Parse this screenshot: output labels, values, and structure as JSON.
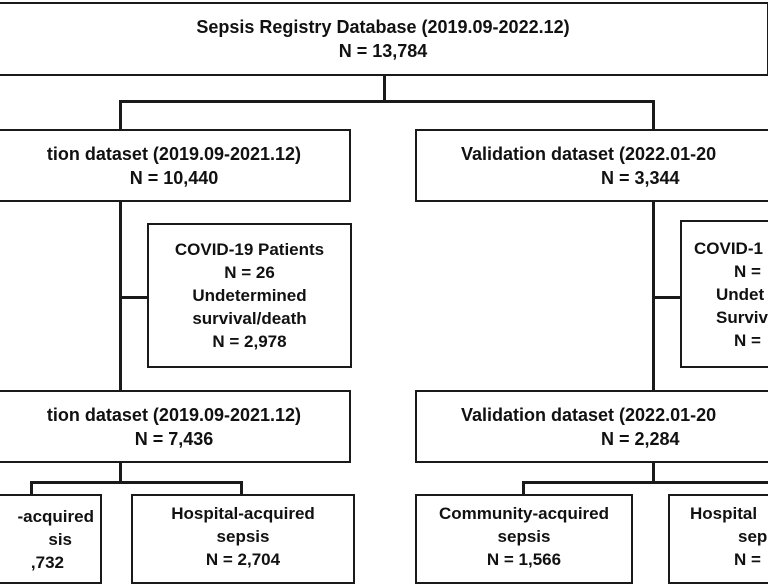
{
  "top": {
    "title": "Sepsis Registry Database (2019.09-2022.12)",
    "n": "N = 13,784"
  },
  "left": {
    "dataset1": {
      "title": "tion dataset (2019.09-2021.12)",
      "n": "N = 10,440"
    },
    "exclusion": {
      "line1": "COVID-19 Patients",
      "line2": "N = 26",
      "line3": "Undetermined",
      "line4": "survival/death",
      "line5": "N = 2,978"
    },
    "dataset2": {
      "title": "tion dataset (2019.09-2021.12)",
      "n": "N = 7,436"
    },
    "community": {
      "line1": "-acquired",
      "line2": "sis",
      "line3": ",732"
    },
    "hospital": {
      "line1": "Hospital-acquired",
      "line2": "sepsis",
      "line3": "N = 2,704"
    }
  },
  "right": {
    "dataset1": {
      "title": "Validation dataset (2022.01-20",
      "n": "N = 3,344"
    },
    "exclusion": {
      "line1": "COVID-1",
      "line2": "N =",
      "line3": "Undet",
      "line4": "Surviv",
      "line5": "N ="
    },
    "dataset2": {
      "title": "Validation dataset (2022.01-20",
      "n": "N = 2,284"
    },
    "community": {
      "line1": "Community-acquired",
      "line2": "sepsis",
      "line3": "N = 1,566"
    },
    "hospital": {
      "line1": "Hospital",
      "line2": "sep",
      "line3": "N ="
    }
  }
}
